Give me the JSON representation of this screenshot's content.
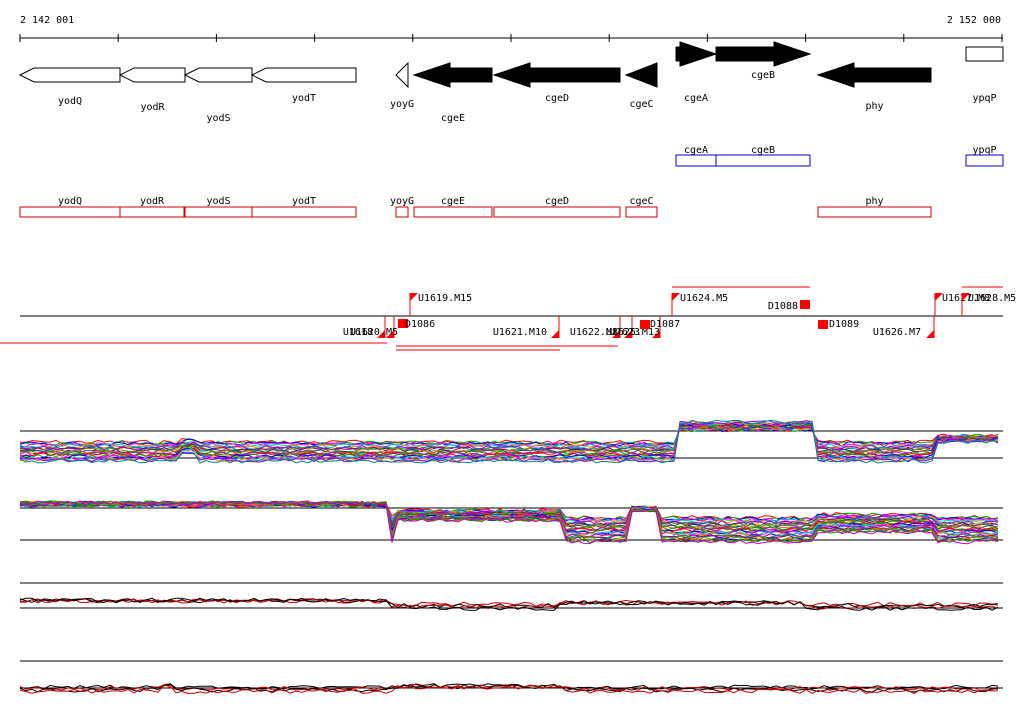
{
  "coordinates": {
    "start": "2 142 001",
    "end": "2 152 000"
  },
  "colors": {
    "gene_fill": "#000000",
    "operon_primary": "#0000cc",
    "operon_secondary": "#cc0000",
    "feature": "#ff0000",
    "axis": "#000000"
  },
  "genes": [
    {
      "name": "yodQ",
      "strand": "-",
      "style": "outline"
    },
    {
      "name": "yodR",
      "strand": "-",
      "style": "outline"
    },
    {
      "name": "yodS",
      "strand": "-",
      "style": "outline"
    },
    {
      "name": "yodT",
      "strand": "-",
      "style": "outline"
    },
    {
      "name": "yoyG",
      "strand": "-",
      "style": "outline"
    },
    {
      "name": "cgeE",
      "strand": "-",
      "style": "filled"
    },
    {
      "name": "cgeD",
      "strand": "-",
      "style": "filled"
    },
    {
      "name": "cgeC",
      "strand": "-",
      "style": "filled"
    },
    {
      "name": "cgeA",
      "strand": "+",
      "style": "filled"
    },
    {
      "name": "cgeB",
      "strand": "+",
      "style": "filled"
    },
    {
      "name": "phy",
      "strand": "-",
      "style": "filled"
    },
    {
      "name": "ypqP",
      "strand": "+",
      "style": "outline"
    }
  ],
  "operon_blue": [
    {
      "name": "cgeA"
    },
    {
      "name": "cgeB"
    },
    {
      "name": "ypqP"
    }
  ],
  "operon_red": [
    {
      "name": "yodQ"
    },
    {
      "name": "yodR"
    },
    {
      "name": "yodS"
    },
    {
      "name": "yodT"
    },
    {
      "name": "yoyG"
    },
    {
      "name": "cgeE"
    },
    {
      "name": "cgeD"
    },
    {
      "name": "cgeC"
    },
    {
      "name": "phy"
    }
  ],
  "features": [
    {
      "label": "U1619.M15"
    },
    {
      "label": "U1624.M5"
    },
    {
      "label": "D1088"
    },
    {
      "label": "U1627.M8"
    },
    {
      "label": "U1628.M5"
    },
    {
      "label": "U1618"
    },
    {
      "label": "U1620.M5"
    },
    {
      "label": "D1086"
    },
    {
      "label": "U1621.M10"
    },
    {
      "label": "U1622.M8"
    },
    {
      "label": "U1623"
    },
    {
      "label": "U1625.M13"
    },
    {
      "label": "D1087"
    },
    {
      "label": "D1089"
    },
    {
      "label": "U1626.M7"
    }
  ],
  "tracks": [
    {
      "name": "expression-panel-1"
    },
    {
      "name": "expression-panel-2"
    },
    {
      "name": "expression-panel-3"
    },
    {
      "name": "expression-panel-4"
    }
  ]
}
